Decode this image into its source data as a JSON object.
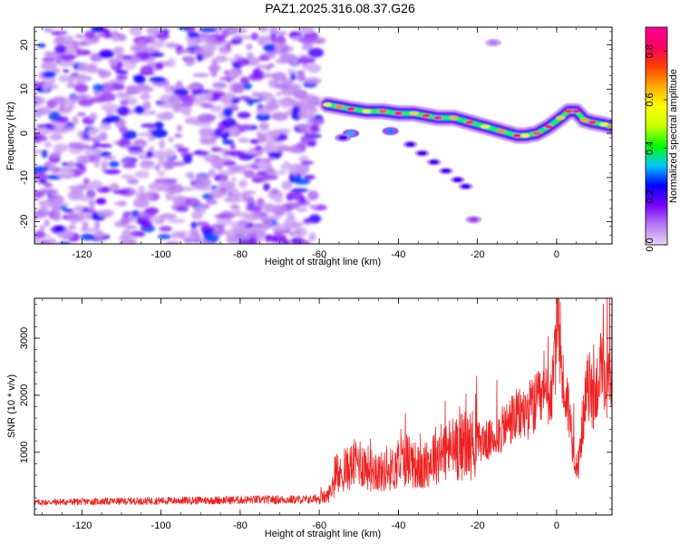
{
  "title": "PAZ1.2025.316.08.37.G26",
  "chart_data": [
    {
      "type": "heatmap",
      "name": "spectrogram",
      "xlabel": "Height of straight line (km)",
      "ylabel": "Frequency (Hz)",
      "xlim": [
        -132,
        14
      ],
      "ylim": [
        -25,
        24
      ],
      "xticks": [
        -120,
        -100,
        -80,
        -60,
        -40,
        -20,
        0
      ],
      "yticks": [
        20,
        10,
        0,
        -10,
        -20
      ],
      "colorbar": {
        "label": "Normalized spectral amplitude",
        "range": [
          0.0,
          0.9
        ],
        "ticks": [
          0.0,
          0.2,
          0.4,
          0.6,
          0.8
        ],
        "colors": [
          "#e8d5f5",
          "#b57af0",
          "#7a00ff",
          "#0000ff",
          "#00c8ff",
          "#00ff00",
          "#c8ff00",
          "#ffff00",
          "#ffaa00",
          "#ff4000",
          "#ff0060",
          "#ff0099"
        ]
      },
      "noise_region": {
        "x_range": [
          -132,
          -60
        ],
        "freq_range": [
          -25,
          24
        ]
      },
      "main_trace": [
        {
          "x": -58,
          "f": 6.5
        },
        {
          "x": -55,
          "f": 6.0
        },
        {
          "x": -52,
          "f": 5.5
        },
        {
          "x": -48,
          "f": 5.0
        },
        {
          "x": -44,
          "f": 5.0
        },
        {
          "x": -40,
          "f": 4.5
        },
        {
          "x": -36,
          "f": 4.5
        },
        {
          "x": -33,
          "f": 4.0
        },
        {
          "x": -30,
          "f": 3.5
        },
        {
          "x": -26,
          "f": 3.5
        },
        {
          "x": -22,
          "f": 2.5
        },
        {
          "x": -18,
          "f": 1.5
        },
        {
          "x": -14,
          "f": 0.5
        },
        {
          "x": -10,
          "f": -0.5
        },
        {
          "x": -8,
          "f": -0.5
        },
        {
          "x": -5,
          "f": 0.0
        },
        {
          "x": -2,
          "f": 1.5
        },
        {
          "x": 1,
          "f": 3.5
        },
        {
          "x": 3,
          "f": 5.0
        },
        {
          "x": 5,
          "f": 5.0
        },
        {
          "x": 7,
          "f": 3.0
        },
        {
          "x": 9,
          "f": 2.5
        },
        {
          "x": 12,
          "f": 2.0
        },
        {
          "x": 14,
          "f": 1.5
        }
      ],
      "secondary_trace": [
        {
          "x": -37,
          "f": -2.5
        },
        {
          "x": -34,
          "f": -4.5
        },
        {
          "x": -31,
          "f": -6.5
        },
        {
          "x": -28,
          "f": -8.5
        },
        {
          "x": -25,
          "f": -10.5
        },
        {
          "x": -23,
          "f": -12.0
        }
      ],
      "isolated_blobs": [
        {
          "x": -52,
          "f": 0.0,
          "v": 0.32
        },
        {
          "x": -42,
          "f": 0.5,
          "v": 0.3
        },
        {
          "x": -21,
          "f": -19.5,
          "v": 0.12
        },
        {
          "x": -16,
          "f": 20.5,
          "v": 0.08
        },
        {
          "x": -54,
          "f": -1.0,
          "v": 0.2
        }
      ]
    },
    {
      "type": "line",
      "name": "snr",
      "xlabel": "Height of straight line (km)",
      "ylabel": "SNR (10 * v/v)",
      "xlim": [
        -132,
        14
      ],
      "ylim": [
        -100,
        3700
      ],
      "xticks": [
        -120,
        -100,
        -80,
        -60,
        -40,
        -20,
        0
      ],
      "yticks": [
        1000,
        2000,
        3000
      ],
      "color": "#ee2222",
      "series": [
        {
          "x": -132,
          "y": 120
        },
        {
          "x": -125,
          "y": 130
        },
        {
          "x": -118,
          "y": 135
        },
        {
          "x": -110,
          "y": 140
        },
        {
          "x": -100,
          "y": 150
        },
        {
          "x": -92,
          "y": 155
        },
        {
          "x": -85,
          "y": 160
        },
        {
          "x": -78,
          "y": 165
        },
        {
          "x": -70,
          "y": 170
        },
        {
          "x": -62,
          "y": 170
        },
        {
          "x": -58,
          "y": 220
        },
        {
          "x": -56,
          "y": 480
        },
        {
          "x": -54,
          "y": 650
        },
        {
          "x": -52,
          "y": 750
        },
        {
          "x": -50,
          "y": 850
        },
        {
          "x": -47,
          "y": 700
        },
        {
          "x": -44,
          "y": 650
        },
        {
          "x": -41,
          "y": 720
        },
        {
          "x": -38,
          "y": 900
        },
        {
          "x": -36,
          "y": 800
        },
        {
          "x": -34,
          "y": 650
        },
        {
          "x": -31,
          "y": 950
        },
        {
          "x": -29,
          "y": 1000
        },
        {
          "x": -27,
          "y": 1050
        },
        {
          "x": -25,
          "y": 1100
        },
        {
          "x": -23,
          "y": 1100
        },
        {
          "x": -21,
          "y": 1150
        },
        {
          "x": -19,
          "y": 1200
        },
        {
          "x": -17,
          "y": 1200
        },
        {
          "x": -15,
          "y": 1300
        },
        {
          "x": -13,
          "y": 1450
        },
        {
          "x": -11,
          "y": 1600
        },
        {
          "x": -9,
          "y": 1650
        },
        {
          "x": -7,
          "y": 1750
        },
        {
          "x": -5,
          "y": 1850
        },
        {
          "x": -3,
          "y": 1950
        },
        {
          "x": -1,
          "y": 2100
        },
        {
          "x": 0.5,
          "y": 3500
        },
        {
          "x": 1.5,
          "y": 2200
        },
        {
          "x": 3,
          "y": 1800
        },
        {
          "x": 4.5,
          "y": 900
        },
        {
          "x": 5.5,
          "y": 700
        },
        {
          "x": 6.5,
          "y": 1500
        },
        {
          "x": 8,
          "y": 2200
        },
        {
          "x": 9.5,
          "y": 1900
        },
        {
          "x": 11,
          "y": 2500
        },
        {
          "x": 12.5,
          "y": 2000
        },
        {
          "x": 14,
          "y": 2400
        }
      ]
    }
  ]
}
